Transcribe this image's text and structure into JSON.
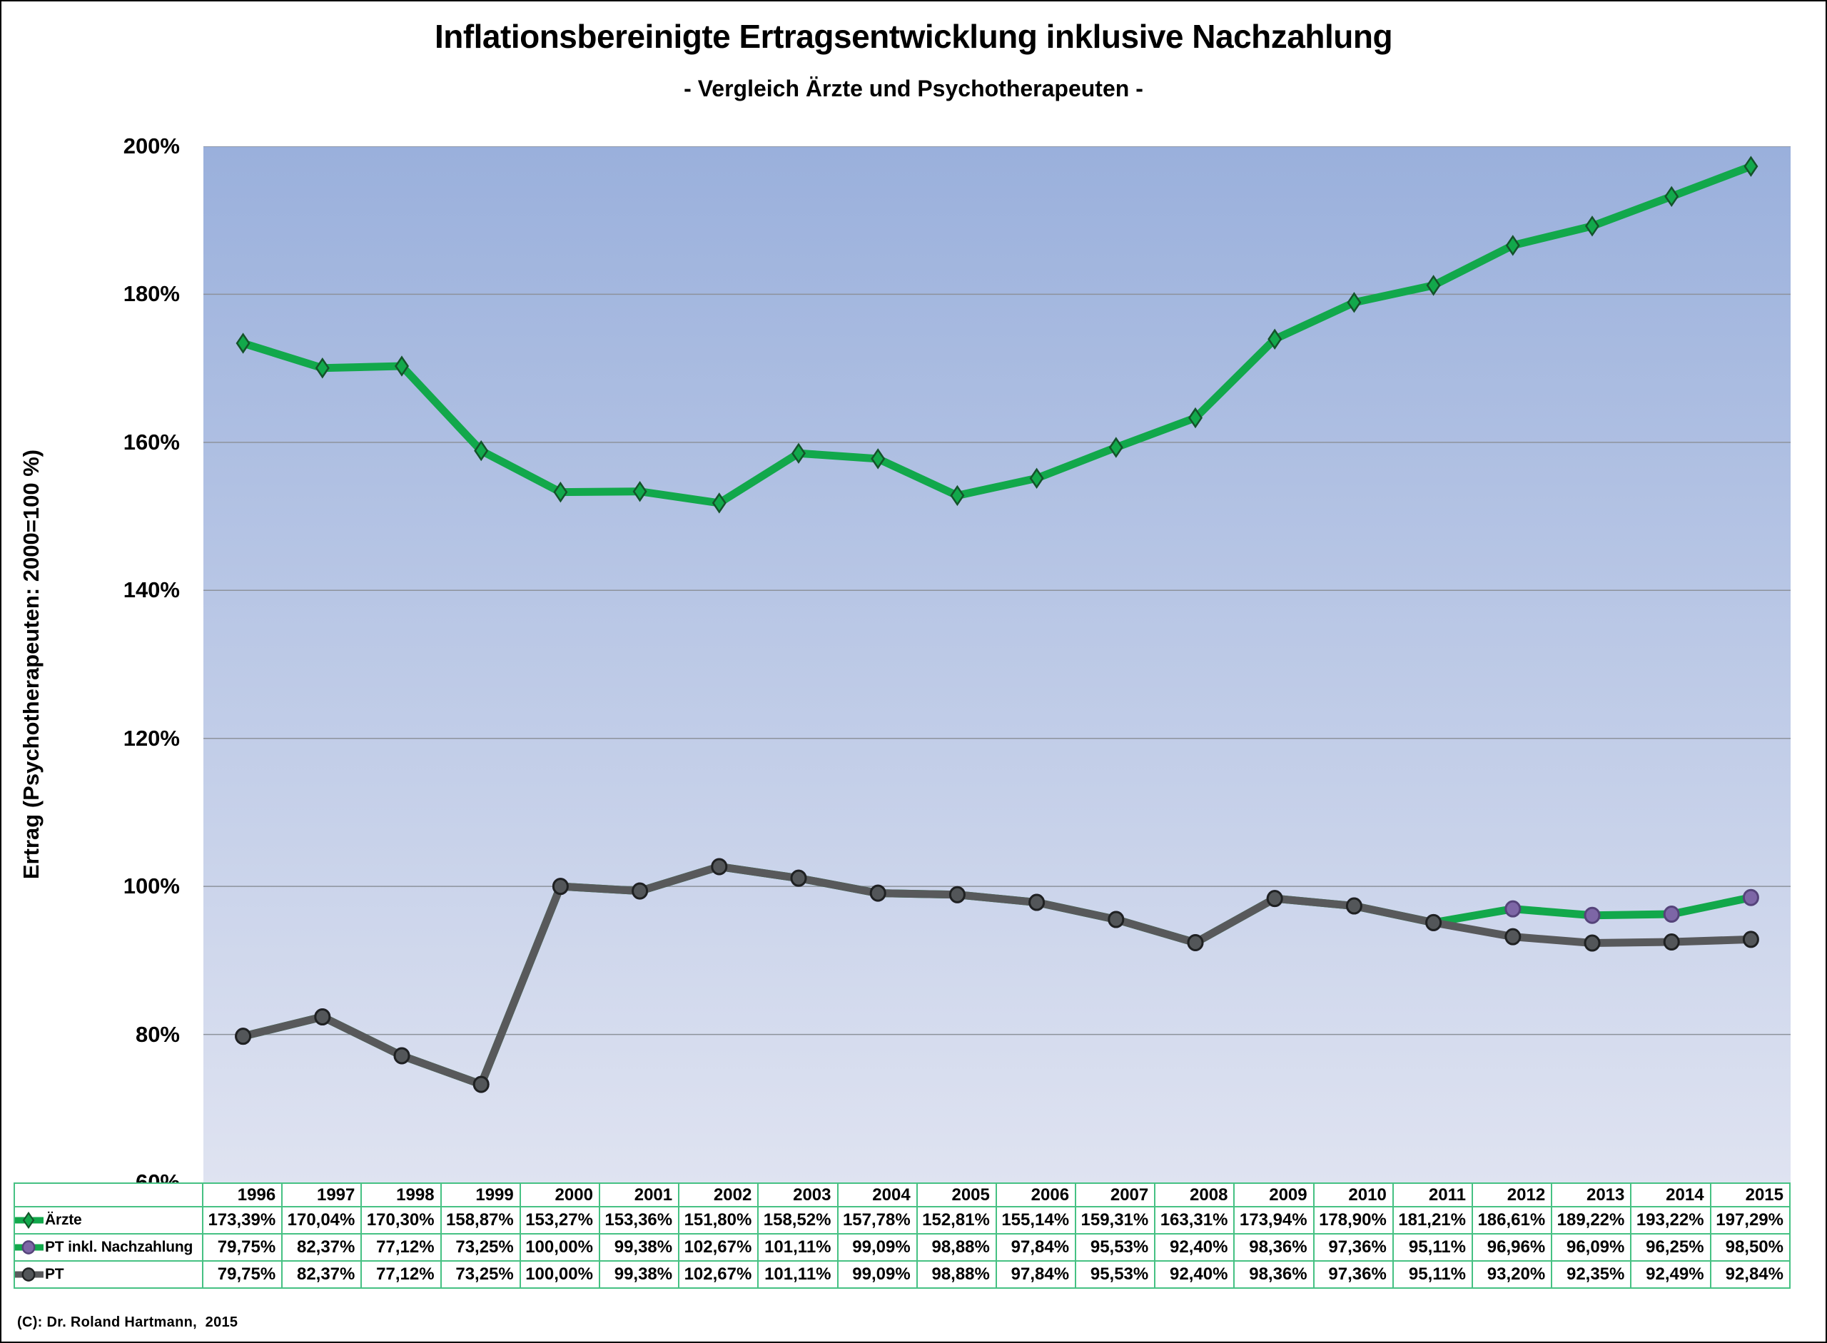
{
  "chart_data": {
    "type": "line",
    "title": "Inflationsbereinigte Ertragsentwicklung inklusive Nachzahlung",
    "subtitle": "- Vergleich Ärzte und Psychotherapeuten -",
    "ylabel": "Ertrag (Psychotherapeuten: 2000=100 %)",
    "xlabel": "",
    "ylim": [
      60,
      200
    ],
    "ytick_step": 20,
    "ytick_suffix": "%",
    "grid": "horizontal-only",
    "legend_position": "table-left",
    "plot_bg_gradient_top": "#9ab0dc",
    "plot_bg_gradient_bottom": "#dfe3f1",
    "gridline_color": "#8d929b",
    "table_border_color": "#46c183",
    "line_width": 11,
    "categories": [
      "1996",
      "1997",
      "1998",
      "1999",
      "2000",
      "2001",
      "2002",
      "2003",
      "2004",
      "2005",
      "2006",
      "2007",
      "2008",
      "2009",
      "2010",
      "2011",
      "2012",
      "2013",
      "2014",
      "2015"
    ],
    "series": [
      {
        "key": "aerzte",
        "name": "Ärzte",
        "marker": "diamond",
        "line_color": "#12a84b",
        "marker_fill": "#12a84b",
        "marker_stroke": "#14532a",
        "values": [
          173.39,
          170.04,
          170.3,
          158.87,
          153.27,
          153.36,
          151.8,
          158.52,
          157.78,
          152.81,
          155.14,
          159.31,
          163.31,
          173.94,
          178.9,
          181.21,
          186.61,
          189.22,
          193.22,
          197.29
        ]
      },
      {
        "key": "pt-inkl-nachzahlung",
        "name": "PT inkl. Nachzahlung",
        "marker": "circle",
        "line_color": "#12a84b",
        "marker_fill": "#7d66a6",
        "marker_stroke": "#55437a",
        "values": [
          79.75,
          82.37,
          77.12,
          73.25,
          100.0,
          99.38,
          102.67,
          101.11,
          99.09,
          98.88,
          97.84,
          95.53,
          92.4,
          98.36,
          97.36,
          95.11,
          96.96,
          96.09,
          96.25,
          98.5
        ]
      },
      {
        "key": "pt",
        "name": "PT",
        "marker": "circle",
        "line_color": "#58595b",
        "marker_fill": "#535659",
        "marker_stroke": "#1f2122",
        "values": [
          79.75,
          82.37,
          77.12,
          73.25,
          100.0,
          99.38,
          102.67,
          101.11,
          99.09,
          98.88,
          97.84,
          95.53,
          92.4,
          98.36,
          97.36,
          95.11,
          93.2,
          92.35,
          92.49,
          92.84
        ]
      }
    ],
    "z_order": [
      "pt-inkl-nachzahlung",
      "pt",
      "aerzte"
    ],
    "value_format": "de-percent-2dp"
  },
  "footer": {
    "copyright": "(C): Dr. Roland Hartmann,  2015"
  }
}
